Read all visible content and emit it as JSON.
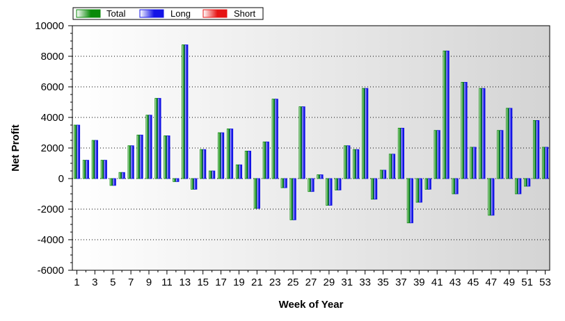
{
  "chart_data": {
    "type": "bar",
    "xlabel": "Week of Year",
    "ylabel": "Net Profit",
    "ylim": [
      -6000,
      10000
    ],
    "yticks": [
      10000,
      8000,
      6000,
      4000,
      2000,
      0,
      -2000,
      -4000,
      -6000
    ],
    "xtick_labels": [
      "1",
      "3",
      "5",
      "7",
      "9",
      "11",
      "13",
      "15",
      "17",
      "19",
      "21",
      "23",
      "25",
      "27",
      "29",
      "31",
      "33",
      "35",
      "37",
      "39",
      "41",
      "43",
      "45",
      "47",
      "49",
      "51",
      "53"
    ],
    "grid": true,
    "legend_position": "top-left",
    "categories": [
      1,
      2,
      3,
      4,
      5,
      6,
      7,
      8,
      9,
      10,
      11,
      12,
      13,
      14,
      15,
      16,
      17,
      18,
      19,
      20,
      21,
      22,
      23,
      24,
      25,
      26,
      27,
      28,
      29,
      30,
      31,
      32,
      33,
      34,
      35,
      36,
      37,
      38,
      39,
      40,
      41,
      42,
      43,
      44,
      45,
      46,
      47,
      48,
      49,
      50,
      51,
      52,
      53
    ],
    "series": [
      {
        "name": "Total",
        "color": "#0a8a0a",
        "values": [
          3500,
          1200,
          2500,
          1200,
          -450,
          400,
          2150,
          2850,
          4150,
          5250,
          2800,
          -200,
          8750,
          -700,
          1900,
          500,
          3000,
          3250,
          900,
          1800,
          -1950,
          2400,
          5200,
          -600,
          -2700,
          4700,
          -850,
          250,
          -1750,
          -750,
          2150,
          1900,
          5900,
          -1350,
          550,
          1600,
          3300,
          -2900,
          -1550,
          -700,
          3150,
          8350,
          -1000,
          6300,
          2050,
          5900,
          -2400,
          3150,
          4600,
          -1000,
          -500,
          3800,
          2050
        ]
      },
      {
        "name": "Long",
        "color": "#1414e6",
        "values": [
          3500,
          1200,
          2500,
          1200,
          -450,
          400,
          2150,
          2850,
          4150,
          5250,
          2800,
          -200,
          8750,
          -700,
          1900,
          500,
          3000,
          3250,
          900,
          1800,
          -1950,
          2400,
          5200,
          -600,
          -2700,
          4700,
          -850,
          250,
          -1750,
          -750,
          2150,
          1900,
          5900,
          -1350,
          550,
          1600,
          3300,
          -2900,
          -1550,
          -700,
          3150,
          8350,
          -1000,
          6300,
          2050,
          5900,
          -2400,
          3150,
          4600,
          -1000,
          -500,
          3800,
          2050
        ]
      },
      {
        "name": "Short",
        "color": "#e61414",
        "values": [
          0,
          0,
          0,
          0,
          0,
          0,
          0,
          0,
          0,
          0,
          0,
          0,
          0,
          0,
          0,
          0,
          0,
          0,
          0,
          0,
          0,
          0,
          0,
          0,
          0,
          0,
          0,
          0,
          0,
          0,
          0,
          0,
          0,
          0,
          0,
          0,
          0,
          0,
          0,
          0,
          0,
          0,
          0,
          0,
          0,
          0,
          0,
          0,
          0,
          0,
          0,
          0,
          0
        ]
      }
    ]
  }
}
